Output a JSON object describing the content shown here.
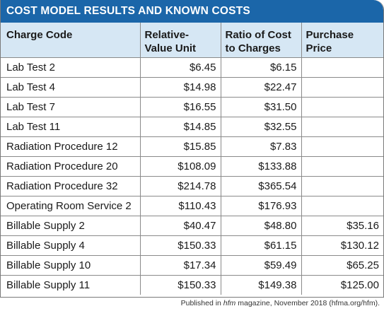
{
  "title": "COST MODEL RESULTS AND KNOWN COSTS",
  "headers": {
    "charge_code": "Charge Code",
    "rvu_line1": "Relative-",
    "rvu_line2": "Value Unit",
    "rcc_line1": "Ratio of Cost",
    "rcc_line2": "to Charges",
    "pp_line1": "Purchase",
    "pp_line2": "Price"
  },
  "rows": [
    {
      "code": "Lab Test 2",
      "rvu": "$6.45",
      "rcc": "$6.15",
      "price": ""
    },
    {
      "code": "Lab Test 4",
      "rvu": "$14.98",
      "rcc": "$22.47",
      "price": ""
    },
    {
      "code": "Lab Test 7",
      "rvu": "$16.55",
      "rcc": "$31.50",
      "price": ""
    },
    {
      "code": "Lab Test 11",
      "rvu": "$14.85",
      "rcc": "$32.55",
      "price": ""
    },
    {
      "code": "Radiation Procedure 12",
      "rvu": "$15.85",
      "rcc": "$7.83",
      "price": ""
    },
    {
      "code": "Radiation Procedure 20",
      "rvu": "$108.09",
      "rcc": "$133.88",
      "price": ""
    },
    {
      "code": "Radiation Procedure 32",
      "rvu": "$214.78",
      "rcc": "$365.54",
      "price": ""
    },
    {
      "code": "Operating Room Service 2",
      "rvu": "$110.43",
      "rcc": "$176.93",
      "price": ""
    },
    {
      "code": "Billable Supply 2",
      "rvu": "$40.47",
      "rcc": "$48.80",
      "price": "$35.16"
    },
    {
      "code": "Billable Supply 4",
      "rvu": "$150.33",
      "rcc": "$61.15",
      "price": "$130.12"
    },
    {
      "code": "Billable Supply 10",
      "rvu": "$17.34",
      "rcc": "$59.49",
      "price": "$65.25"
    },
    {
      "code": "Billable Supply 11",
      "rvu": "$150.33",
      "rcc": "$149.38",
      "price": "$125.00"
    }
  ],
  "caption": {
    "prefix": "Published in ",
    "magazine": "hfm",
    "suffix": " magazine, November 2018 (hfma.org/hfm)."
  },
  "colors": {
    "title_bar": "#1b66a9",
    "header_fill": "#d6e7f4"
  }
}
